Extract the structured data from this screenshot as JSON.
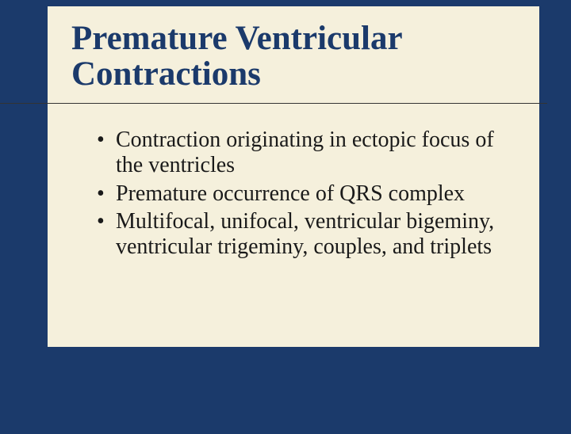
{
  "slide": {
    "title": "Premature Ventricular Contractions",
    "background_color": "#1b3a6b",
    "content_background_color": "#f5f0dc",
    "title_color": "#1b3a6b",
    "title_fontsize": 43,
    "bullet_color": "#1a1a1a",
    "bullet_fontsize": 28,
    "bullets": [
      "Contraction originating in ectopic focus of the ventricles",
      "Premature occurrence of QRS complex",
      "Multifocal, unifocal, ventricular bigeminy, ventricular trigeminy, couples, and triplets"
    ]
  }
}
